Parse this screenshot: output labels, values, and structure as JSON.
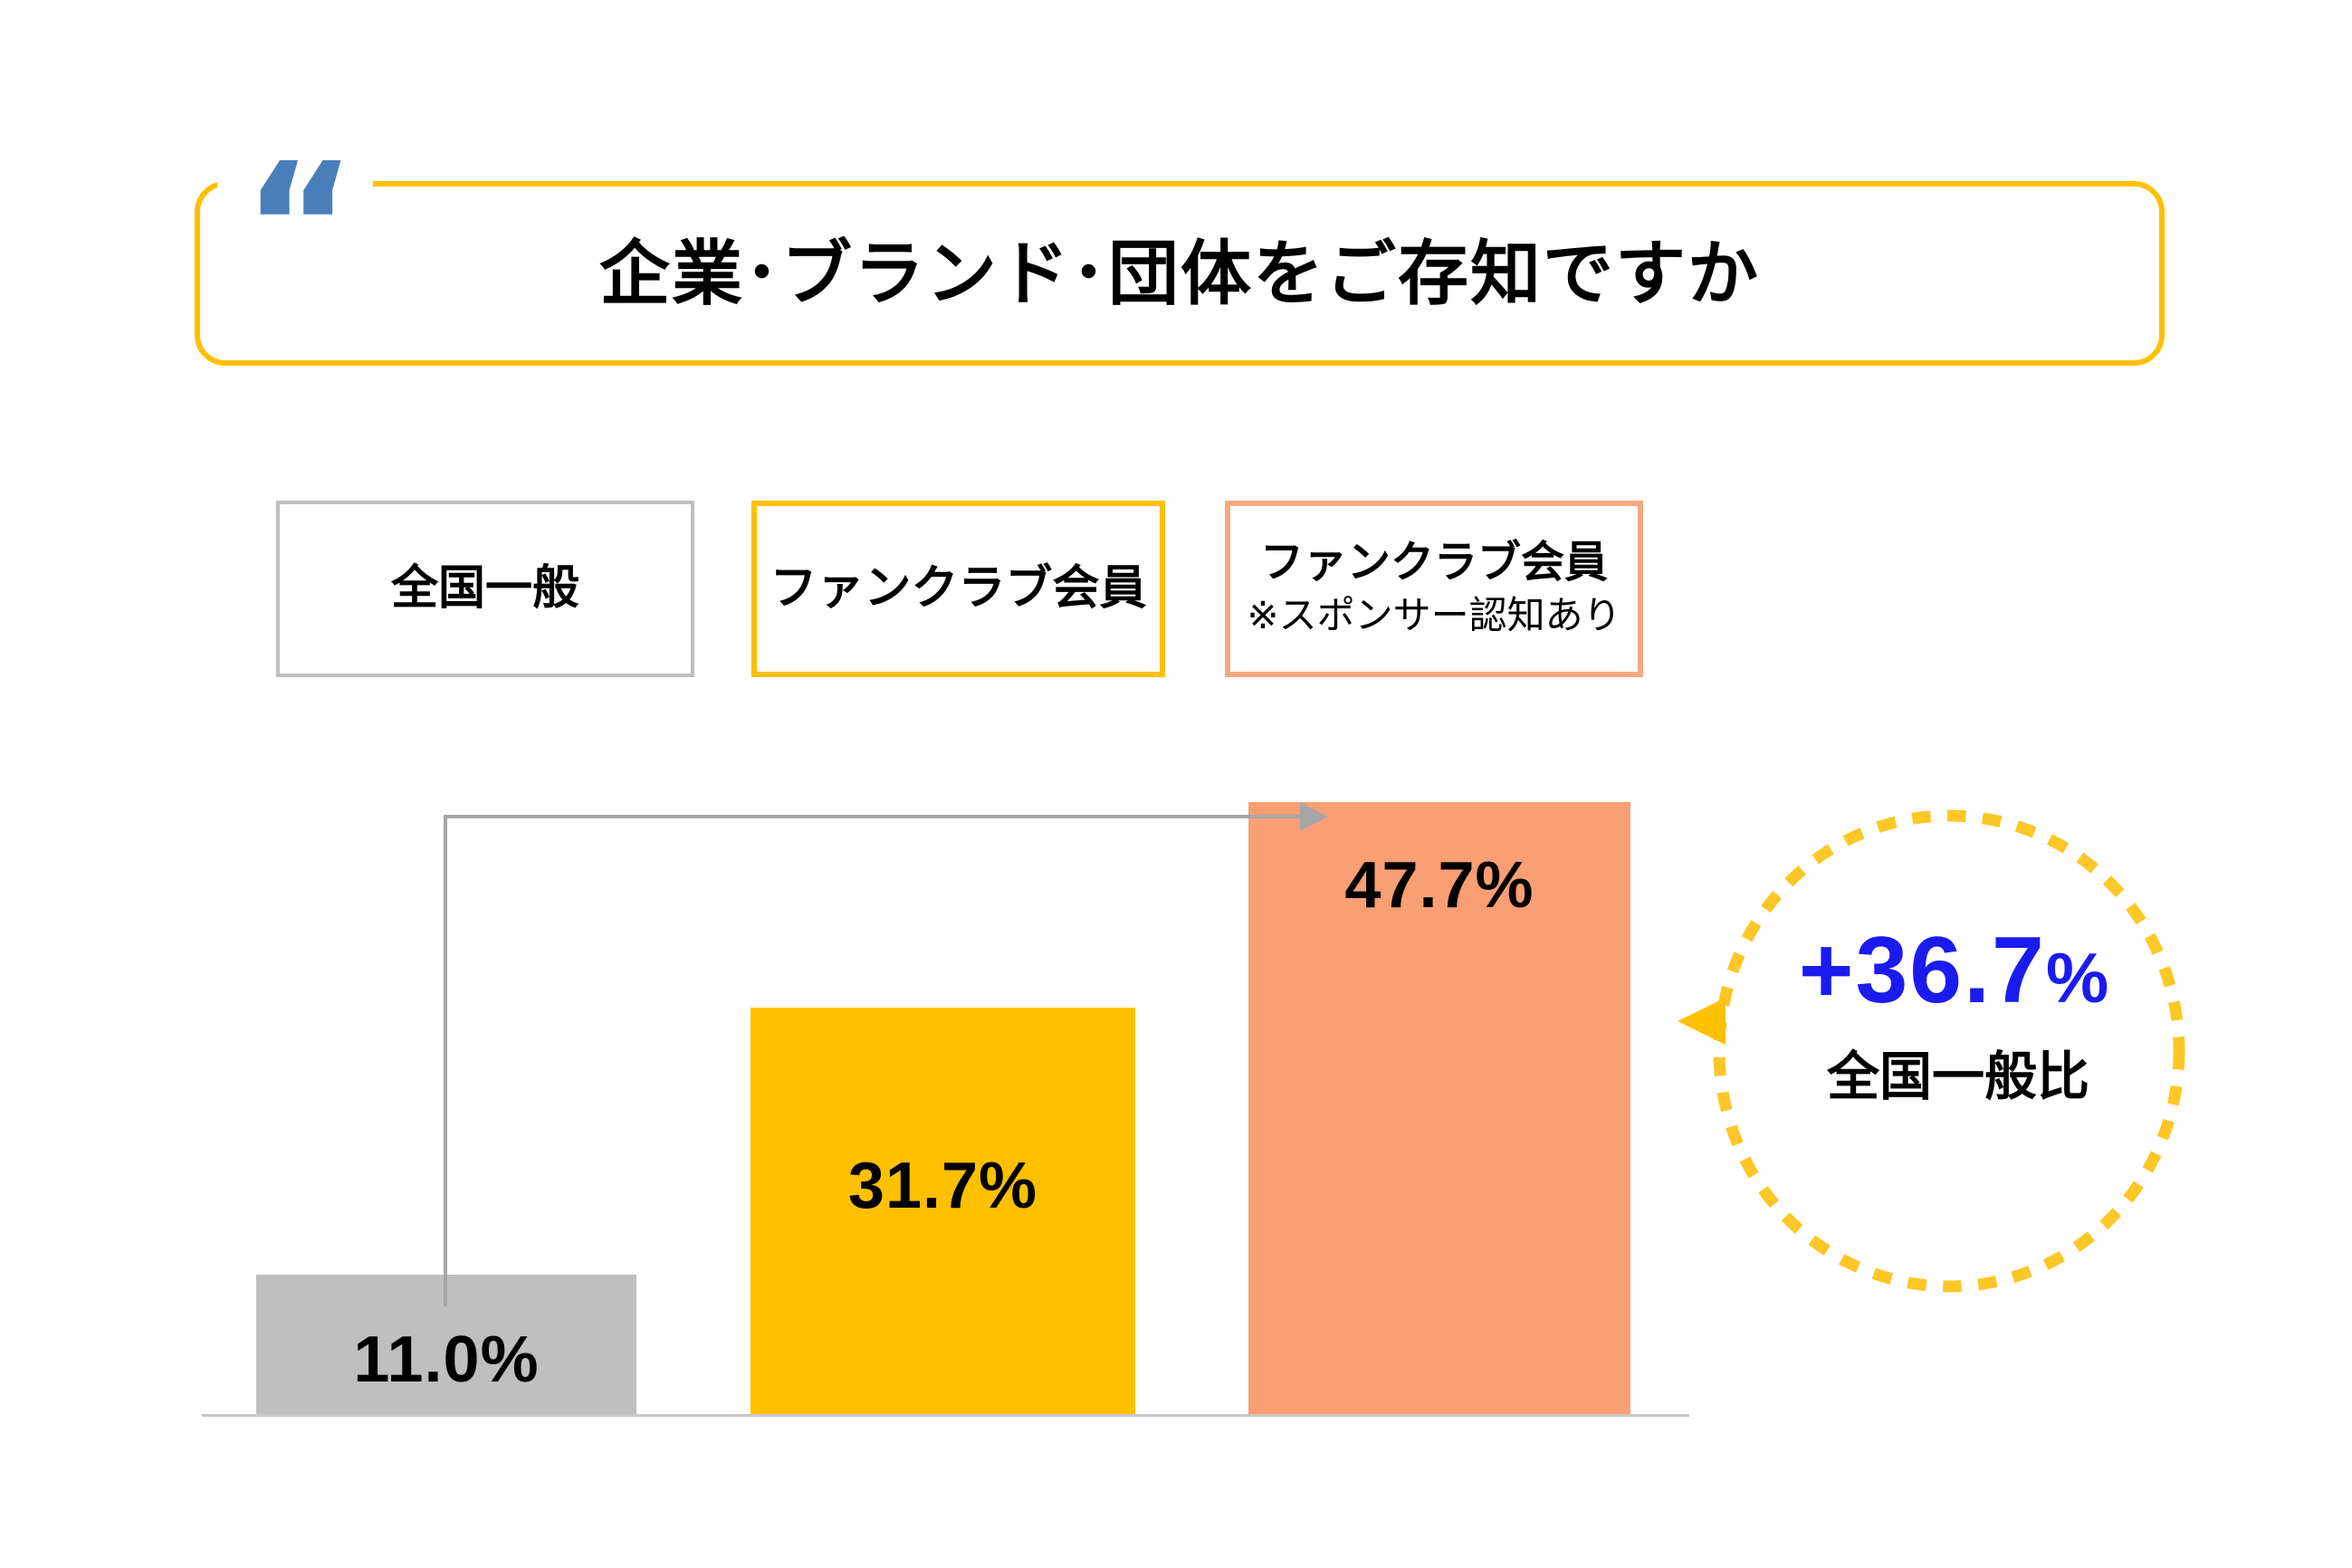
{
  "title": {
    "text": "企業･ブランド･団体をご存知ですか",
    "quote_mark": "“"
  },
  "legend": [
    {
      "label": "全国一般",
      "note": "",
      "border_color": "#BFBFBF"
    },
    {
      "label": "ファンクラブ会員",
      "note": "",
      "border_color": "#FFC000"
    },
    {
      "label": "ファンクラブ会員",
      "note": "※スポンサー認知あり",
      "border_color": "#F8A880"
    }
  ],
  "chart_data": {
    "type": "bar",
    "title": "企業･ブランド･団体をご存知ですか",
    "categories": [
      "全国一般",
      "ファンクラブ会員",
      "ファンクラブ会員 ※スポンサー認知あり"
    ],
    "values": [
      11.0,
      31.7,
      47.7
    ],
    "value_labels": [
      "11.0%",
      "31.7%",
      "47.7%"
    ],
    "bar_colors": [
      "#BFBFBF",
      "#FFC000",
      "#FA9E74"
    ],
    "xlabel": "",
    "ylabel": "",
    "ylim": [
      0,
      50
    ],
    "grid": false,
    "legend_position": "top",
    "annotations": [
      {
        "text": "+36.7%",
        "sub_text": "全国一般比",
        "applies_to": "ファンクラブ会員 ※スポンサー認知あり"
      }
    ]
  },
  "annotation": {
    "plus": "+",
    "value": "36.7",
    "percent": "%",
    "label": "全国一般比",
    "value_color": "#1B1BEF"
  },
  "colors": {
    "accent_gold": "#FFC000",
    "accent_salmon": "#FA9E74",
    "accent_gray": "#BFBFBF",
    "arrow_gray": "#A6A6A6",
    "baseline_gray": "#C9C9C9",
    "quote_blue": "#4A7EBB",
    "diff_blue": "#1B1BEF",
    "circle_dots": "#FDC728"
  }
}
